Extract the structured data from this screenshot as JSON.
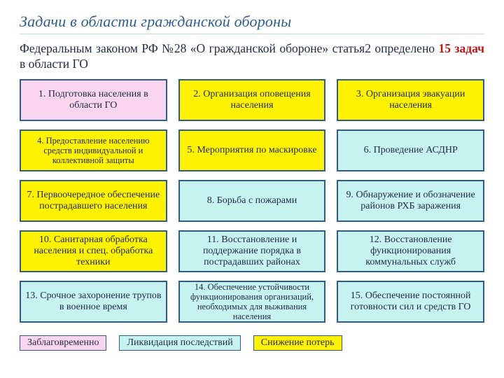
{
  "colors": {
    "title": "#2f5d91",
    "hr": "#c6d4e4",
    "intro_text": "#1f2a44",
    "emphasis": "#c31414",
    "border": "#2f5d91",
    "pink_bg": "#f9d5f0",
    "yellow_bg": "#fff200",
    "cyan_bg": "#c6f2f0",
    "legend_border": "#2f5d91"
  },
  "title": "Задачи в области гражданской обороны",
  "intro": {
    "main": "Федеральным законом РФ №28 «О гражданской обороне» статья2 определено ",
    "emph": "15 задач",
    "tail": " в области ГО"
  },
  "cells": [
    {
      "text": "1. Подготовка населения в области ГО",
      "bg": "pink"
    },
    {
      "text": "2. Организация оповещения населения",
      "bg": "yellow"
    },
    {
      "text": "3. Организация эвакуации населения",
      "bg": "yellow"
    },
    {
      "text": "4. Предоставление населению средств индивидуальной и коллективной защиты",
      "bg": "yellow",
      "small": true
    },
    {
      "text": "5. Мероприятия по маскировке",
      "bg": "yellow"
    },
    {
      "text": "6. Проведение АСДНР",
      "bg": "cyan"
    },
    {
      "text": "7. Первоочередное обеспечение пострадавшего населения",
      "bg": "yellow"
    },
    {
      "text": "8. Борьба  с пожарами",
      "bg": "cyan"
    },
    {
      "text": "9. Обнаружение и обозначение районов РХБ заражения",
      "bg": "cyan"
    },
    {
      "text": "10. Санитарная обработка населения и спец. обработка техники",
      "bg": "yellow"
    },
    {
      "text": "11. Восстановление и поддержание порядка в пострадавших районах",
      "bg": "cyan"
    },
    {
      "text": "12. Восстановление функционирования коммунальных служб",
      "bg": "cyan"
    },
    {
      "text": "13. Срочное захоронение трупов в военное время",
      "bg": "cyan"
    },
    {
      "text": "14. Обеспечение устойчивости функционирования организаций, необходимых для выживания населения",
      "bg": "cyan",
      "small": true
    },
    {
      "text": "15. Обеспечение постоянной готовности сил и средств ГО",
      "bg": "cyan"
    }
  ],
  "legend": [
    {
      "text": "Заблаговременно",
      "bg": "pink"
    },
    {
      "text": "Ликвидация последствий",
      "bg": "cyan"
    },
    {
      "text": "Снижение потерь",
      "bg": "yellow"
    }
  ]
}
